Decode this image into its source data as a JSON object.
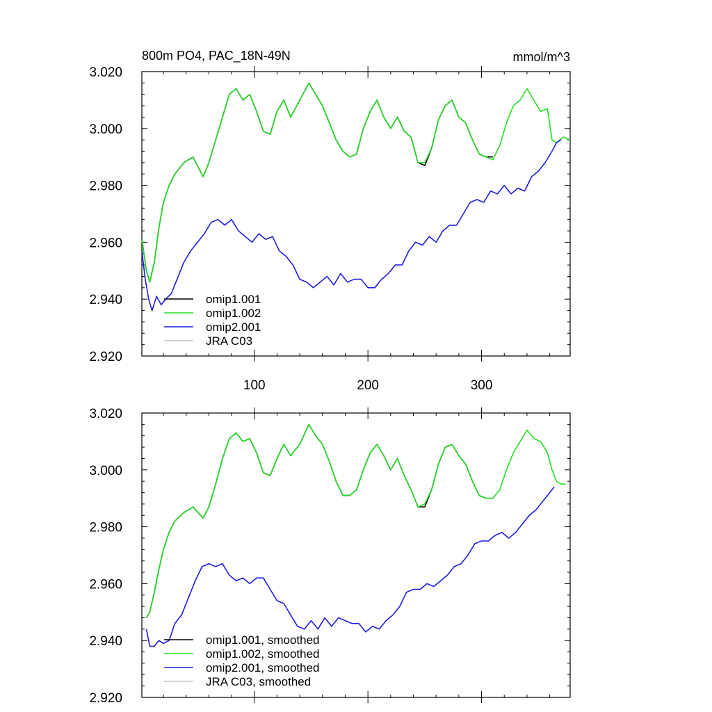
{
  "figure": {
    "title_left": "800m PO4, PAC_18N-49N",
    "title_right": "mmol/m^3"
  },
  "chart_data": [
    {
      "type": "line",
      "panel": "top",
      "title": "800m PO4, PAC_18N-49N",
      "units": "mmol/m^3",
      "xlim": [
        1,
        378
      ],
      "ylim": [
        2.92,
        3.02
      ],
      "yticks": [
        2.92,
        2.94,
        2.96,
        2.98,
        3.0,
        3.02
      ],
      "ytick_labels": [
        "2.920",
        "2.940",
        "2.960",
        "2.980",
        "3.000",
        "3.020"
      ],
      "xticks": [
        100,
        200,
        300
      ],
      "xtick_labels": [
        "100",
        "200",
        "300"
      ],
      "legend_position": "bottom-left",
      "series": [
        {
          "name": "omip1.001",
          "color": "#000000",
          "x": [
            1,
            5,
            8,
            12,
            16,
            20,
            25,
            30,
            38,
            46,
            55,
            60,
            66,
            72,
            78,
            84,
            90,
            96,
            102,
            108,
            114,
            120,
            126,
            132,
            140,
            148,
            154,
            160,
            166,
            172,
            178,
            184,
            190,
            196,
            202,
            208,
            214,
            220,
            226,
            232,
            238,
            244,
            250,
            256,
            262,
            268,
            274,
            280,
            286,
            292,
            298,
            304,
            310
          ],
          "values": [
            2.961,
            2.95,
            2.946,
            2.953,
            2.965,
            2.974,
            2.98,
            2.984,
            2.988,
            2.99,
            2.983,
            2.988,
            2.996,
            3.004,
            3.012,
            3.014,
            3.01,
            3.012,
            3.006,
            2.999,
            2.998,
            3.006,
            3.01,
            3.004,
            3.01,
            3.016,
            3.012,
            3.008,
            3.002,
            2.996,
            2.992,
            2.99,
            2.991,
            3.0,
            3.006,
            3.01,
            3.004,
            3.0,
            3.004,
            2.999,
            2.997,
            2.988,
            2.987,
            2.993,
            3.003,
            3.008,
            3.01,
            3.004,
            3.002,
            2.996,
            2.991,
            2.99,
            2.99
          ]
        },
        {
          "name": "omip1.002",
          "color": "#22dd22",
          "x": [
            1,
            5,
            8,
            12,
            16,
            20,
            25,
            30,
            38,
            46,
            55,
            60,
            66,
            72,
            78,
            84,
            90,
            96,
            102,
            108,
            114,
            120,
            126,
            132,
            140,
            148,
            154,
            160,
            166,
            172,
            178,
            184,
            190,
            196,
            202,
            208,
            214,
            220,
            226,
            232,
            238,
            244,
            250,
            256,
            262,
            268,
            274,
            280,
            286,
            292,
            298,
            304,
            310,
            316,
            322,
            328,
            334,
            340,
            346,
            352,
            358,
            362,
            366,
            372,
            378
          ],
          "values": [
            2.961,
            2.95,
            2.946,
            2.953,
            2.965,
            2.974,
            2.98,
            2.984,
            2.988,
            2.99,
            2.983,
            2.988,
            2.996,
            3.004,
            3.012,
            3.014,
            3.01,
            3.012,
            3.006,
            2.999,
            2.998,
            3.006,
            3.01,
            3.004,
            3.01,
            3.016,
            3.012,
            3.008,
            3.002,
            2.996,
            2.992,
            2.99,
            2.991,
            3.0,
            3.006,
            3.01,
            3.004,
            3.0,
            3.004,
            2.999,
            2.997,
            2.988,
            2.988,
            2.993,
            3.003,
            3.008,
            3.01,
            3.004,
            3.002,
            2.996,
            2.991,
            2.99,
            2.989,
            2.994,
            3.002,
            3.008,
            3.01,
            3.014,
            3.01,
            3.006,
            3.007,
            2.996,
            2.995,
            2.997,
            2.996
          ]
        },
        {
          "name": "omip2.001",
          "color": "#1c1ce0",
          "x": [
            1,
            4,
            7,
            10,
            14,
            18,
            22,
            27,
            32,
            38,
            44,
            50,
            56,
            62,
            68,
            74,
            80,
            86,
            92,
            98,
            104,
            110,
            116,
            122,
            128,
            134,
            140,
            146,
            152,
            158,
            164,
            170,
            176,
            182,
            188,
            194,
            200,
            206,
            212,
            218,
            224,
            230,
            236,
            242,
            248,
            254,
            260,
            266,
            272,
            278,
            284,
            290,
            296,
            302,
            308,
            314,
            320,
            326,
            332,
            338,
            344,
            350,
            356,
            362,
            366,
            370
          ],
          "values": [
            2.957,
            2.947,
            2.94,
            2.936,
            2.941,
            2.938,
            2.94,
            2.942,
            2.947,
            2.953,
            2.957,
            2.96,
            2.963,
            2.967,
            2.968,
            2.966,
            2.968,
            2.964,
            2.962,
            2.96,
            2.963,
            2.961,
            2.962,
            2.957,
            2.955,
            2.952,
            2.947,
            2.946,
            2.944,
            2.946,
            2.948,
            2.945,
            2.949,
            2.946,
            2.947,
            2.947,
            2.944,
            2.944,
            2.947,
            2.949,
            2.952,
            2.952,
            2.957,
            2.96,
            2.959,
            2.962,
            2.96,
            2.964,
            2.966,
            2.966,
            2.97,
            2.974,
            2.975,
            2.974,
            2.978,
            2.977,
            2.98,
            2.977,
            2.979,
            2.978,
            2.983,
            2.985,
            2.988,
            2.992,
            2.995,
            2.996
          ]
        },
        {
          "name": "JRA C03",
          "color": "#c0c0c0",
          "x": [],
          "values": []
        }
      ]
    },
    {
      "type": "line",
      "panel": "bottom",
      "xlim": [
        1,
        378
      ],
      "ylim": [
        2.92,
        3.02
      ],
      "yticks": [
        2.92,
        2.94,
        2.96,
        2.98,
        3.0,
        3.02
      ],
      "ytick_labels": [
        "2.920",
        "2.940",
        "2.960",
        "2.980",
        "3.000",
        "3.020"
      ],
      "xticks": [
        100,
        200,
        300
      ],
      "legend_position": "bottom-left",
      "series": [
        {
          "name": "omip1.001, smoothed",
          "color": "#000000",
          "x": [
            5,
            8,
            12,
            16,
            20,
            25,
            30,
            38,
            46,
            55,
            60,
            66,
            72,
            78,
            84,
            90,
            96,
            102,
            108,
            114,
            120,
            126,
            132,
            140,
            148,
            154,
            160,
            166,
            172,
            178,
            184,
            190,
            196,
            202,
            208,
            214,
            220,
            226,
            232,
            238,
            244,
            250,
            256,
            262,
            268,
            274,
            280,
            286,
            292,
            298,
            304,
            310
          ],
          "values": [
            2.948,
            2.95,
            2.957,
            2.965,
            2.972,
            2.978,
            2.982,
            2.985,
            2.987,
            2.983,
            2.987,
            2.995,
            3.004,
            3.011,
            3.013,
            3.01,
            3.011,
            3.006,
            2.999,
            2.998,
            3.004,
            3.009,
            3.005,
            3.009,
            3.016,
            3.012,
            3.009,
            3.003,
            2.996,
            2.991,
            2.991,
            2.993,
            3.0,
            3.006,
            3.009,
            3.005,
            3.0,
            3.004,
            2.998,
            2.993,
            2.987,
            2.987,
            2.993,
            3.002,
            3.008,
            3.009,
            3.005,
            3.002,
            2.996,
            2.991,
            2.99,
            2.99
          ]
        },
        {
          "name": "omip1.002, smoothed",
          "color": "#22dd22",
          "x": [
            5,
            8,
            12,
            16,
            20,
            25,
            30,
            38,
            46,
            55,
            60,
            66,
            72,
            78,
            84,
            90,
            96,
            102,
            108,
            114,
            120,
            126,
            132,
            140,
            148,
            154,
            160,
            166,
            172,
            178,
            184,
            190,
            196,
            202,
            208,
            214,
            220,
            226,
            232,
            238,
            244,
            250,
            256,
            262,
            268,
            274,
            280,
            286,
            292,
            298,
            304,
            310,
            316,
            322,
            328,
            334,
            340,
            346,
            352,
            358,
            362,
            366,
            370,
            374
          ],
          "values": [
            2.948,
            2.95,
            2.957,
            2.965,
            2.972,
            2.978,
            2.982,
            2.985,
            2.987,
            2.983,
            2.987,
            2.995,
            3.004,
            3.011,
            3.013,
            3.01,
            3.011,
            3.006,
            2.999,
            2.998,
            3.004,
            3.009,
            3.005,
            3.009,
            3.016,
            3.012,
            3.009,
            3.003,
            2.996,
            2.991,
            2.991,
            2.993,
            3.0,
            3.006,
            3.009,
            3.005,
            3.0,
            3.004,
            2.998,
            2.993,
            2.987,
            2.988,
            2.993,
            3.002,
            3.008,
            3.009,
            3.005,
            3.002,
            2.996,
            2.991,
            2.99,
            2.99,
            2.993,
            3.0,
            3.006,
            3.01,
            3.014,
            3.011,
            3.01,
            3.006,
            3.0,
            2.996,
            2.995,
            2.995
          ]
        },
        {
          "name": "omip2.001, smoothed",
          "color": "#1c1ce0",
          "x": [
            5,
            8,
            12,
            16,
            20,
            25,
            30,
            36,
            42,
            48,
            54,
            60,
            66,
            72,
            78,
            84,
            90,
            96,
            102,
            108,
            114,
            120,
            126,
            132,
            138,
            144,
            150,
            156,
            162,
            168,
            174,
            180,
            186,
            192,
            198,
            204,
            210,
            216,
            222,
            228,
            234,
            240,
            246,
            252,
            258,
            264,
            270,
            276,
            282,
            288,
            294,
            300,
            306,
            312,
            318,
            324,
            330,
            336,
            342,
            348,
            354,
            360,
            364
          ],
          "values": [
            2.944,
            2.938,
            2.938,
            2.94,
            2.939,
            2.94,
            2.946,
            2.949,
            2.955,
            2.961,
            2.966,
            2.967,
            2.966,
            2.967,
            2.963,
            2.961,
            2.962,
            2.96,
            2.962,
            2.962,
            2.958,
            2.954,
            2.953,
            2.949,
            2.945,
            2.944,
            2.947,
            2.944,
            2.948,
            2.945,
            2.948,
            2.947,
            2.946,
            2.946,
            2.943,
            2.945,
            2.944,
            2.947,
            2.949,
            2.952,
            2.957,
            2.958,
            2.958,
            2.96,
            2.959,
            2.961,
            2.963,
            2.966,
            2.967,
            2.97,
            2.974,
            2.975,
            2.975,
            2.977,
            2.978,
            2.976,
            2.978,
            2.981,
            2.984,
            2.986,
            2.989,
            2.992,
            2.994
          ]
        },
        {
          "name": "JRA C03, smoothed",
          "color": "#c0c0c0",
          "x": [],
          "values": []
        }
      ]
    }
  ]
}
